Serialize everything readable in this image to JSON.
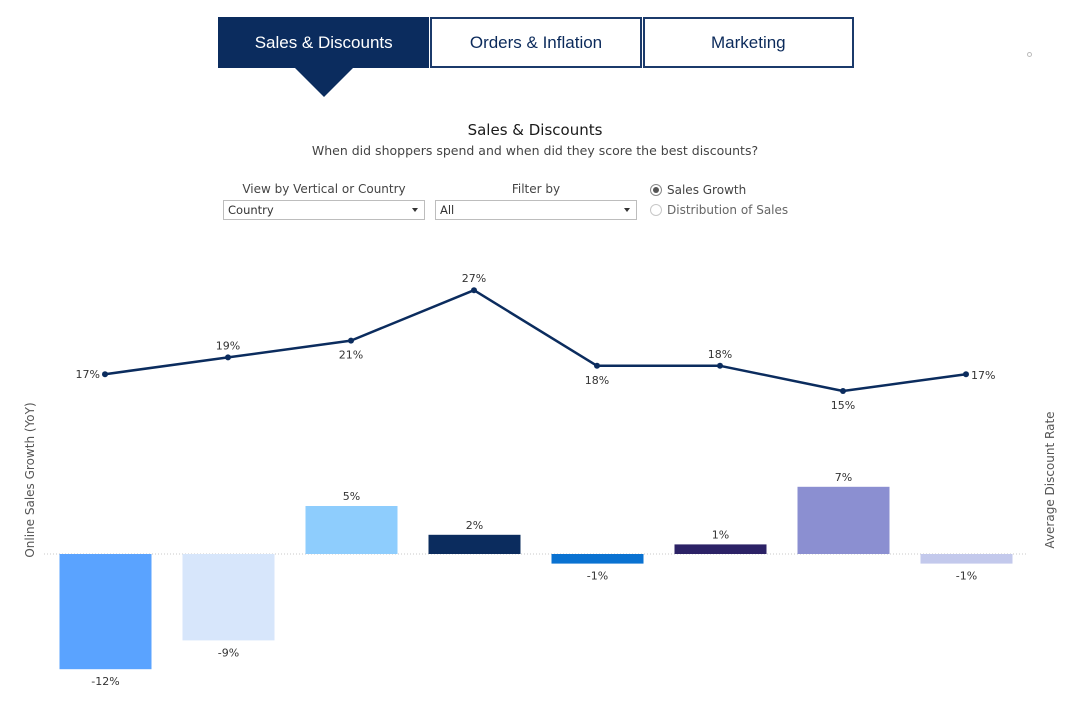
{
  "tabs": [
    {
      "label": "Sales & Discounts",
      "active": true
    },
    {
      "label": "Orders & Inflation",
      "active": false
    },
    {
      "label": "Marketing",
      "active": false
    }
  ],
  "header": {
    "title": "Sales & Discounts",
    "subtitle": "When did shoppers spend and when did they score the best discounts?"
  },
  "controls": {
    "view_label": "View by Vertical or Country",
    "view_value": "Country",
    "filter_label": "Filter by",
    "filter_value": "All",
    "radio_options": [
      {
        "label": "Sales Growth",
        "selected": true
      },
      {
        "label": "Distribution of Sales",
        "selected": false
      }
    ]
  },
  "colors": {
    "tab_active": "#0b2c5e",
    "line": "#0b2c5e",
    "bars": [
      "#5aa3ff",
      "#d7e6fb",
      "#8ecdfd",
      "#0b2c5e",
      "#0a72d1",
      "#2c2266",
      "#8b8fd1",
      "#c3c9ec"
    ]
  },
  "chart_data": {
    "type": "bar",
    "left_axis_label": "Online Sales Growth (YoY)",
    "right_axis_label": "Average Discount Rate",
    "series": [
      {
        "name": "Online Sales Growth (YoY)",
        "type": "bar",
        "values": [
          -12,
          -9,
          5,
          2,
          -1,
          1,
          7,
          -1
        ],
        "labels": [
          "-12%",
          "-9%",
          "5%",
          "2%",
          "-1%",
          "1%",
          "7%",
          "-1%"
        ]
      },
      {
        "name": "Average Discount Rate",
        "type": "line",
        "values": [
          17,
          19,
          21,
          27,
          18,
          18,
          15,
          17
        ],
        "labels": [
          "17%",
          "19%",
          "21%",
          "27%",
          "18%",
          "18%",
          "15%",
          "17%"
        ]
      }
    ],
    "grid": false,
    "legend": "none"
  }
}
